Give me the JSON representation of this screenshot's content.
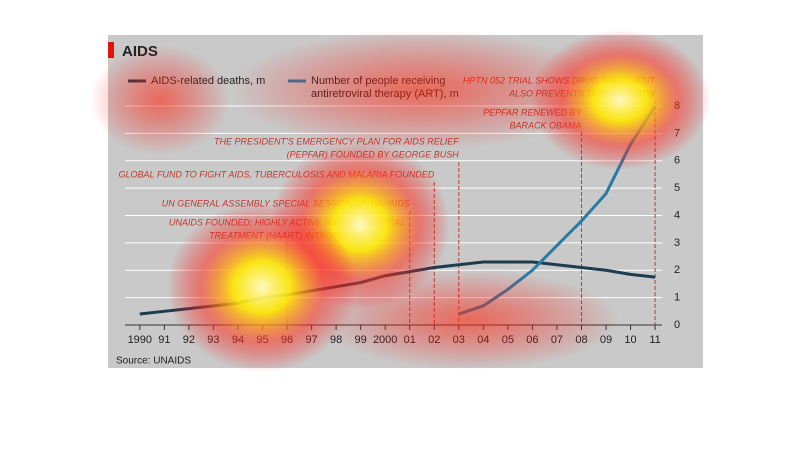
{
  "chart_data": {
    "type": "line",
    "title": "AIDS",
    "source": "Source: UNAIDS",
    "x": [
      1990,
      1991,
      1992,
      1993,
      1994,
      1995,
      1996,
      1997,
      1998,
      1999,
      2000,
      2001,
      2002,
      2003,
      2004,
      2005,
      2006,
      2007,
      2008,
      2009,
      2010,
      2011
    ],
    "series": [
      {
        "name": "AIDS-related deaths, m",
        "color": "#1d3c4e",
        "values": [
          0.4,
          0.5,
          0.6,
          0.7,
          0.8,
          1.0,
          1.1,
          1.25,
          1.4,
          1.55,
          1.8,
          1.95,
          2.1,
          2.2,
          2.3,
          2.3,
          2.3,
          2.2,
          2.1,
          2.0,
          1.85,
          1.75
        ]
      },
      {
        "name": [
          "Number of people receiving",
          "antiretroviral therapy (ART), m"
        ],
        "color": "#2a7ba3",
        "values": [
          null,
          null,
          null,
          null,
          null,
          null,
          null,
          null,
          null,
          null,
          null,
          null,
          null,
          0.4,
          0.7,
          1.3,
          2.0,
          2.9,
          3.8,
          4.8,
          6.6,
          8.0
        ]
      }
    ],
    "xlim": [
      1989.6,
      2011.2
    ],
    "xticks": [
      1990,
      {
        "value": 1991,
        "label": "91"
      },
      {
        "value": 1992,
        "label": "92"
      },
      {
        "value": 1993,
        "label": "93"
      },
      {
        "value": 1994,
        "label": "94"
      },
      {
        "value": 1995,
        "label": "95"
      },
      {
        "value": 1996,
        "label": "96"
      },
      {
        "value": 1997,
        "label": "97"
      },
      {
        "value": 1998,
        "label": "98"
      },
      {
        "value": 1999,
        "label": "99"
      },
      2000,
      {
        "value": 2001,
        "label": "01"
      },
      {
        "value": 2002,
        "label": "02"
      },
      {
        "value": 2003,
        "label": "03"
      },
      {
        "value": 2004,
        "label": "04"
      },
      {
        "value": 2005,
        "label": "05"
      },
      {
        "value": 2006,
        "label": "06"
      },
      {
        "value": 2007,
        "label": "07"
      },
      {
        "value": 2008,
        "label": "08"
      },
      {
        "value": 2009,
        "label": "09"
      },
      {
        "value": 2010,
        "label": "10"
      },
      {
        "value": 2011,
        "label": "11"
      }
    ],
    "ylim": [
      0,
      8
    ],
    "yticks": [
      0,
      1,
      2,
      3,
      4,
      5,
      6,
      7,
      8
    ],
    "grid": true,
    "annotations": [
      {
        "x": 1996,
        "text": [
          "UNAIDS FOUNDED; HIGHLY ACTIVE ANTI-RETROVIRAL",
          "TREATMENT (HAART) INTRODUCED"
        ]
      },
      {
        "x": 2001,
        "text": [
          "UN GENERAL ASSEMBLY SPECIAL SESSION ON HIV/AIDS"
        ]
      },
      {
        "x": 2002,
        "text": [
          "GLOBAL FUND TO FIGHT AIDS, TUBERCULOSIS AND MALARIA FOUNDED"
        ]
      },
      {
        "x": 2003,
        "text": [
          "THE PRESIDENT'S EMERGENCY PLAN FOR AIDS RELIEF",
          "(PEPFAR) FOUNDED BY GEORGE BUSH"
        ]
      },
      {
        "x": 2008,
        "text": [
          "PEPFAR RENEWED BY",
          "BARACK OBAMA"
        ]
      },
      {
        "x": 2011,
        "text": [
          "HPTN 052 TRIAL SHOWS DRUG TREATMENT",
          "ALSO PREVENTS TRANSMISSION"
        ]
      }
    ]
  }
}
